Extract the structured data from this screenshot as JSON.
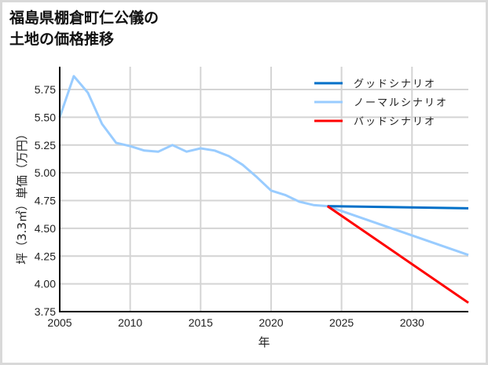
{
  "title": {
    "line1": "福島県棚倉町仁公儀の",
    "line2": "土地の価格推移"
  },
  "colors": {
    "good": "#0070c8",
    "normal": "#99ccff",
    "bad": "#ff0000",
    "grid": "#d4d4d4",
    "axis": "#000000",
    "frame": "#d9d9d9"
  },
  "chart_data": {
    "type": "line",
    "title": "福島県棚倉町仁公儀の土地の価格推移",
    "xlabel": "年",
    "ylabel": "坪（3.3㎡）単価（万円）",
    "xlim": [
      2005,
      2034
    ],
    "ylim": [
      3.75,
      5.95
    ],
    "x_ticks": [
      2005,
      2010,
      2015,
      2020,
      2025,
      2030
    ],
    "y_ticks": [
      3.75,
      4.0,
      4.25,
      4.5,
      4.75,
      5.0,
      5.25,
      5.5,
      5.75
    ],
    "y_tick_labels": [
      "3.75",
      "4.00",
      "4.25",
      "4.50",
      "4.75",
      "5.00",
      "5.25",
      "5.50",
      "5.75"
    ],
    "grid": true,
    "legend_position": "upper right",
    "series": [
      {
        "name": "グッドシナリオ",
        "key": "good",
        "x": [
          2024,
          2034
        ],
        "values": [
          4.7,
          4.68
        ]
      },
      {
        "name": "ノーマルシナリオ",
        "key": "normal",
        "x": [
          2005,
          2006,
          2007,
          2008,
          2009,
          2010,
          2011,
          2012,
          2013,
          2014,
          2015,
          2016,
          2017,
          2018,
          2019,
          2020,
          2021,
          2022,
          2023,
          2024,
          2034
        ],
        "values": [
          5.5,
          5.87,
          5.72,
          5.44,
          5.27,
          5.24,
          5.2,
          5.19,
          5.25,
          5.19,
          5.22,
          5.2,
          5.15,
          5.07,
          4.96,
          4.84,
          4.8,
          4.74,
          4.71,
          4.7,
          4.26
        ]
      },
      {
        "name": "バッドシナリオ",
        "key": "bad",
        "x": [
          2024,
          2034
        ],
        "values": [
          4.7,
          3.83
        ]
      }
    ]
  }
}
